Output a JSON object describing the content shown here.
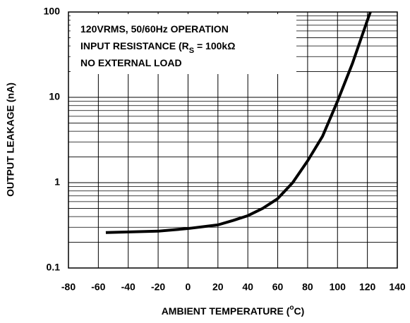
{
  "chart_data": {
    "type": "line",
    "y_label": "OUTPUT LEAKAGE (nA)",
    "x_label": [
      {
        "text": "AMBIENT TEMPERATURE ("
      },
      {
        "text": "o",
        "sup": true
      },
      {
        "text": "C)"
      }
    ],
    "annotations": [
      [
        {
          "text": "120VRMS, 50/60Hz OPERATION"
        }
      ],
      [
        {
          "text": "INPUT RESISTANCE (R"
        },
        {
          "text": "S",
          "sub": true
        },
        {
          "text": " = 100kΩ"
        }
      ],
      [
        {
          "text": "NO EXTERNAL LOAD"
        }
      ]
    ],
    "x": [
      -55,
      -20,
      0,
      20,
      30,
      40,
      50,
      60,
      70,
      80,
      90,
      100,
      110,
      120,
      122
    ],
    "values": [
      0.26,
      0.27,
      0.29,
      0.32,
      0.36,
      0.41,
      0.5,
      0.65,
      1.0,
      1.8,
      3.5,
      9,
      25,
      80,
      100
    ],
    "color": "#000000",
    "xlim": [
      -80,
      140
    ],
    "xticks": [
      -80,
      -60,
      -40,
      -20,
      0,
      20,
      40,
      60,
      80,
      100,
      120,
      140
    ],
    "ylim": [
      0.1,
      100
    ],
    "yticks": [
      0.1,
      1,
      10,
      100
    ],
    "minor_yticks": [
      0.2,
      0.3,
      0.4,
      0.5,
      0.6,
      0.7,
      0.8,
      0.9,
      2,
      3,
      4,
      5,
      6,
      7,
      8,
      9,
      20,
      30,
      40,
      50,
      60,
      70,
      80,
      90
    ],
    "log_y": true,
    "grid": true
  }
}
